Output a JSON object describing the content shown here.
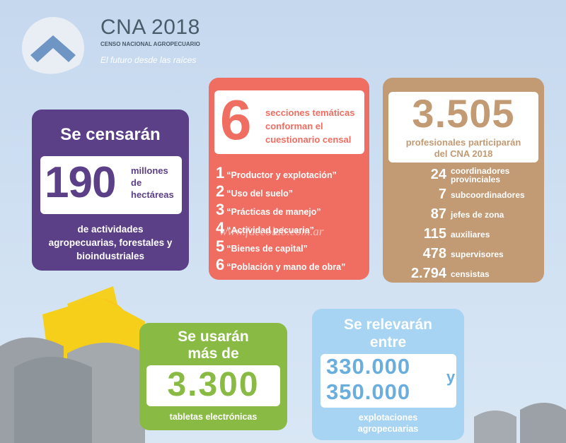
{
  "logo": {
    "title": "CNA 2018",
    "subtitle": "CENSO NACIONAL AGROPECUARIO",
    "tagline": "El futuro desde las raíces"
  },
  "censaran": {
    "heading": "Se censarán",
    "number": "190",
    "unit_1": "millones",
    "unit_2": "de",
    "unit_3": "hectáreas",
    "desc_1": "de actividades",
    "desc_2": "agropecuarias, forestales y",
    "desc_3": "bioindustriales"
  },
  "secciones": {
    "number": "6",
    "text_1": "secciones temáticas",
    "text_2": "conforman el",
    "text_3": "cuestionario censal",
    "items": [
      {
        "n": "1",
        "label": "“Productor y explotación”"
      },
      {
        "n": "2",
        "label": "“Uso del suelo”"
      },
      {
        "n": "3",
        "label": "“Prácticas de manejo”"
      },
      {
        "n": "4",
        "label": "“Actividad pecuaria”"
      },
      {
        "n": "5",
        "label": "“Bienes de capital”"
      },
      {
        "n": "6",
        "label": "“Población y mano de obra”"
      }
    ]
  },
  "profesionales": {
    "number": "3.505",
    "text_1": "profesionales participarán",
    "text_2": "del CNA 2018",
    "roles": [
      {
        "count": "24",
        "label_1": "coordinadores",
        "label_2": "provinciales"
      },
      {
        "count": "7",
        "label_1": "subcoordinadores",
        "label_2": ""
      },
      {
        "count": "87",
        "label_1": "jefes de zona",
        "label_2": ""
      },
      {
        "count": "115",
        "label_1": "auxiliares",
        "label_2": ""
      },
      {
        "count": "478",
        "label_1": "supervisores",
        "label_2": ""
      },
      {
        "count": "2.794",
        "label_1": "censistas",
        "label_2": ""
      }
    ]
  },
  "tabletas": {
    "heading_1": "Se usarán",
    "heading_2": "más de",
    "number": "3.300",
    "desc": "tabletas electrónicas"
  },
  "relevaran": {
    "heading_1": "Se relevarán",
    "heading_2": "entre",
    "number_1": "330.000",
    "conj": "y",
    "number_2": "350.000",
    "desc_1": "explotaciones",
    "desc_2": "agropecuarias"
  },
  "watermark": "www.faccolab.com.ar",
  "colors": {
    "purple": "#5b3f87",
    "coral": "#ef6e61",
    "tan": "#c29a73",
    "green": "#89bb44",
    "light_blue": "#a7d4f2",
    "sky": "#c6d8ee"
  }
}
